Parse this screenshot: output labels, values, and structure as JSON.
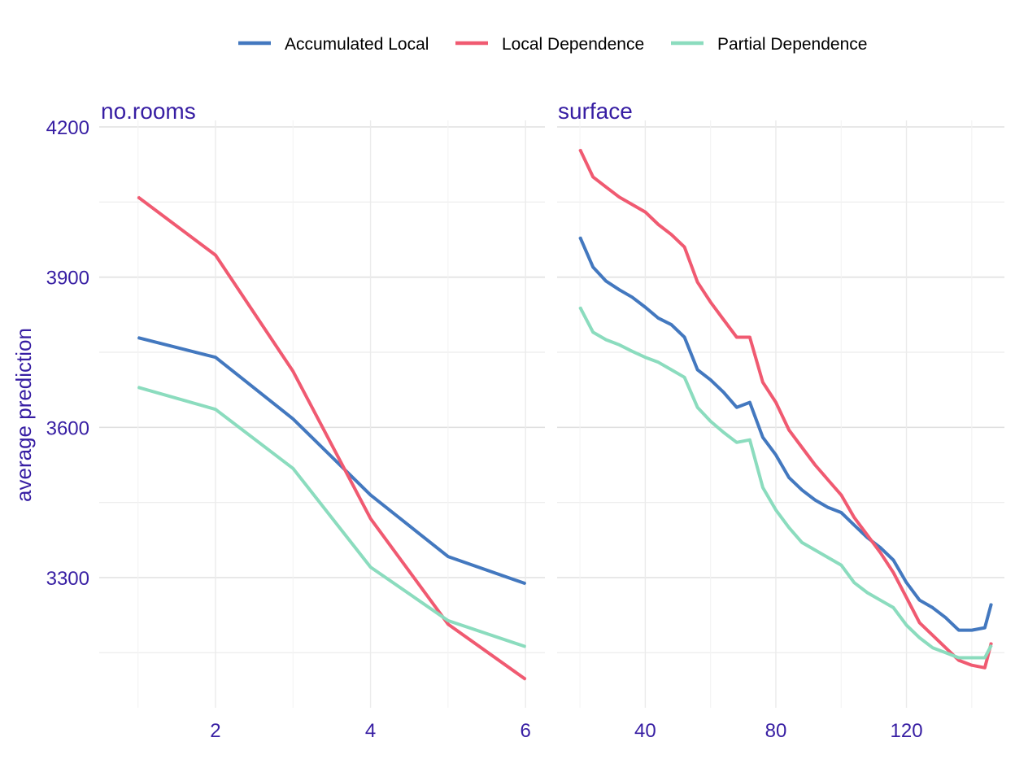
{
  "legend": {
    "items": [
      {
        "label": "Accumulated Local",
        "color": "#4378bf"
      },
      {
        "label": "Local Dependence",
        "color": "#f05a71"
      },
      {
        "label": "Partial Dependence",
        "color": "#8bdcbe"
      }
    ]
  },
  "ylabel": "average prediction",
  "chart_data": [
    {
      "type": "line",
      "title": "no.rooms",
      "xlabel": "",
      "ylabel": "average prediction",
      "xlim": [
        0.5,
        6.25
      ],
      "ylim": [
        3040,
        4212
      ],
      "x_ticks": [
        2,
        4,
        6
      ],
      "y_ticks": [
        3300,
        3600,
        3900,
        4200
      ],
      "grid": true,
      "legend_position": "top",
      "x": [
        1,
        2,
        3,
        4,
        5,
        6
      ],
      "series": [
        {
          "name": "Accumulated Local",
          "color": "#4378bf",
          "values": [
            3779,
            3740,
            3617,
            3465,
            3342,
            3288
          ]
        },
        {
          "name": "Local Dependence",
          "color": "#f05a71",
          "values": [
            4060,
            3944,
            3712,
            3418,
            3207,
            3097
          ]
        },
        {
          "name": "Partial Dependence",
          "color": "#8bdcbe",
          "values": [
            3680,
            3636,
            3518,
            3321,
            3214,
            3162
          ]
        }
      ]
    },
    {
      "type": "line",
      "title": "surface",
      "xlabel": "",
      "ylabel": "",
      "xlim": [
        13,
        150
      ],
      "ylim": [
        3040,
        4212
      ],
      "x_ticks": [
        40,
        80,
        120
      ],
      "y_ticks": [
        3300,
        3600,
        3900,
        4200
      ],
      "grid": true,
      "legend_position": "top",
      "x": [
        20,
        24,
        28,
        32,
        36,
        40,
        44,
        48,
        52,
        56,
        60,
        64,
        68,
        72,
        76,
        80,
        84,
        88,
        92,
        96,
        100,
        104,
        108,
        112,
        116,
        120,
        124,
        128,
        132,
        136,
        140,
        144,
        146
      ],
      "series": [
        {
          "name": "Accumulated Local",
          "color": "#4378bf",
          "values": [
            3980,
            3920,
            3892,
            3875,
            3860,
            3840,
            3818,
            3805,
            3780,
            3715,
            3695,
            3670,
            3640,
            3650,
            3580,
            3545,
            3500,
            3475,
            3455,
            3440,
            3430,
            3405,
            3380,
            3360,
            3335,
            3290,
            3255,
            3240,
            3220,
            3195,
            3195,
            3200,
            3248
          ]
        },
        {
          "name": "Local Dependence",
          "color": "#f05a71",
          "values": [
            4155,
            4100,
            4080,
            4060,
            4045,
            4030,
            4005,
            3985,
            3960,
            3890,
            3850,
            3815,
            3780,
            3780,
            3690,
            3650,
            3595,
            3560,
            3525,
            3495,
            3465,
            3420,
            3385,
            3350,
            3310,
            3260,
            3210,
            3185,
            3160,
            3135,
            3125,
            3120,
            3170
          ]
        },
        {
          "name": "Partial Dependence",
          "color": "#8bdcbe",
          "values": [
            3840,
            3790,
            3775,
            3765,
            3752,
            3740,
            3730,
            3715,
            3700,
            3640,
            3612,
            3590,
            3570,
            3575,
            3480,
            3435,
            3400,
            3370,
            3355,
            3340,
            3325,
            3290,
            3270,
            3255,
            3240,
            3205,
            3180,
            3160,
            3150,
            3140,
            3140,
            3140,
            3165
          ]
        }
      ]
    }
  ]
}
